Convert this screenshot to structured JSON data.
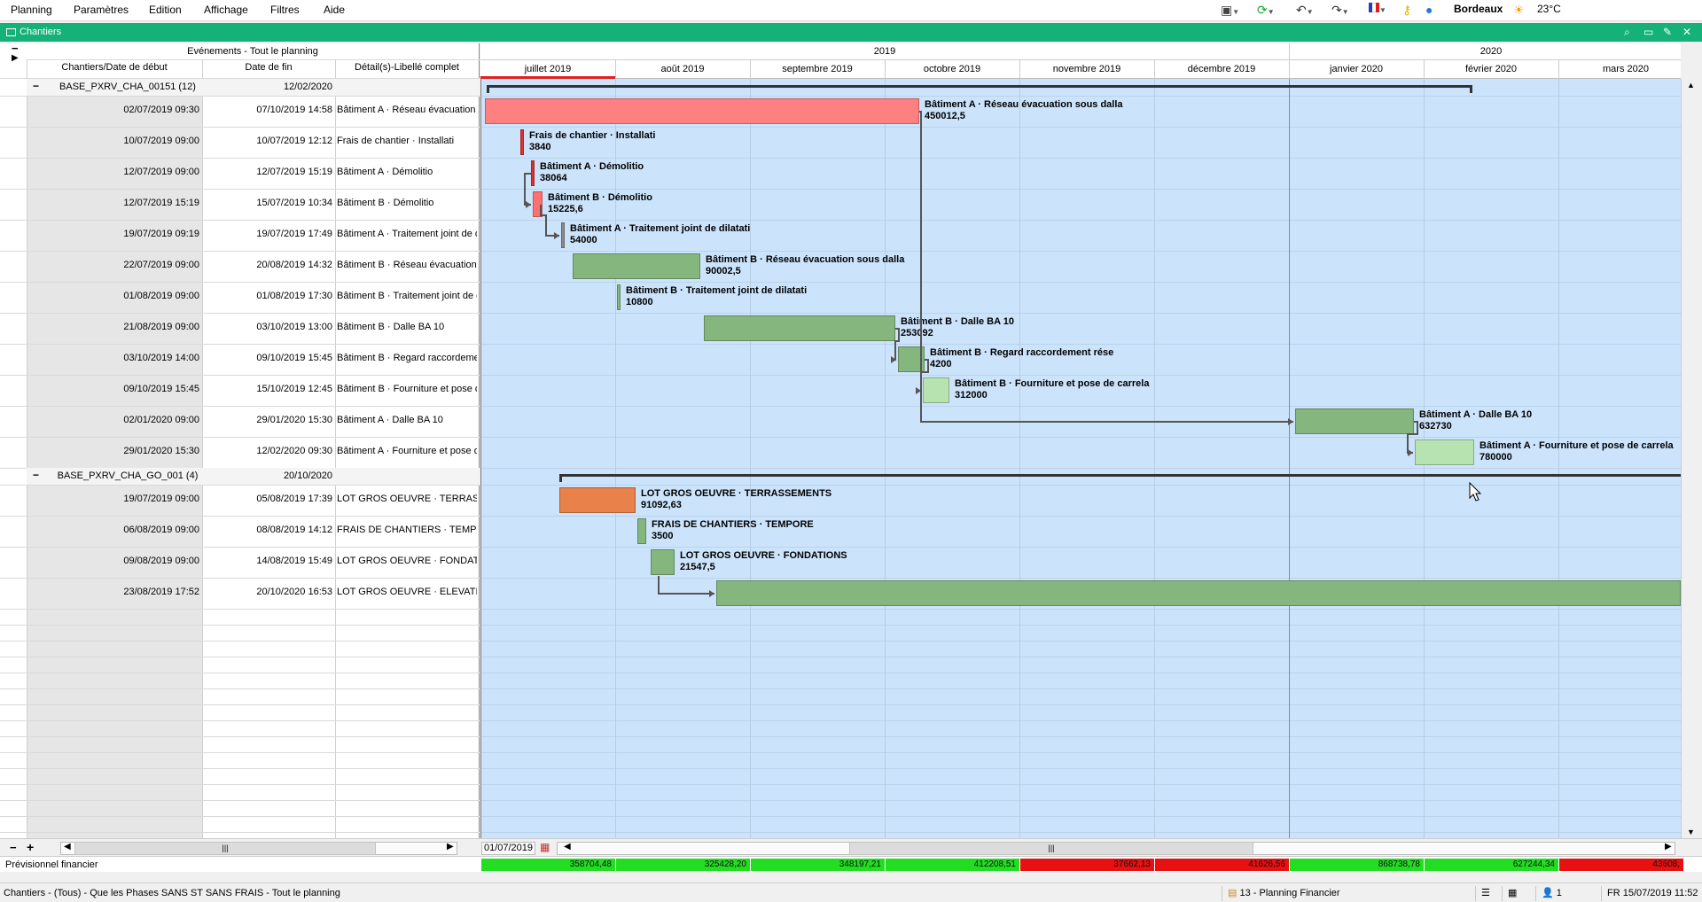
{
  "menu": [
    "Planning",
    "Paramètres",
    "Edition",
    "Affichage",
    "Filtres",
    "Aide"
  ],
  "tray": {
    "city": "Bordeaux",
    "temperature": "23°C"
  },
  "window_title": "Chantiers",
  "grid": {
    "events_header": "Evénements - Tout le planning",
    "col_start": "Chantiers/Date de début",
    "col_end": "Date de fin",
    "col_detail": "Détail(s)-Libellé complet"
  },
  "groups": [
    {
      "name": "BASE_PXRV_CHA_00151 (12)",
      "end": "12/02/2020",
      "rows": [
        {
          "start": "02/07/2019 09:30",
          "end": "07/10/2019 14:58",
          "detail": "Bâtiment A · Réseau évacuation sous dalla",
          "label": "Bâtiment A · Réseau évacuation sous dalla",
          "value": "450012,5"
        },
        {
          "start": "10/07/2019 09:00",
          "end": "10/07/2019 12:12",
          "detail": "Frais de chantier · Installati",
          "label": "Frais de chantier · Installati",
          "value": "3840"
        },
        {
          "start": "12/07/2019 09:00",
          "end": "12/07/2019 15:19",
          "detail": "Bâtiment A · Démolitio",
          "label": "Bâtiment A · Démolitio",
          "value": "38064"
        },
        {
          "start": "12/07/2019 15:19",
          "end": "15/07/2019 10:34",
          "detail": "Bâtiment B · Démolitio",
          "label": "Bâtiment B · Démolitio",
          "value": "15225,6"
        },
        {
          "start": "19/07/2019 09:19",
          "end": "19/07/2019 17:49",
          "detail": "Bâtiment A · Traitement joint de dilatati",
          "label": "Bâtiment A · Traitement joint de dilatati",
          "value": "54000"
        },
        {
          "start": "22/07/2019 09:00",
          "end": "20/08/2019 14:32",
          "detail": "Bâtiment B · Réseau évacuation sous dalla",
          "label": "Bâtiment B · Réseau évacuation sous dalla",
          "value": "90002,5"
        },
        {
          "start": "01/08/2019 09:00",
          "end": "01/08/2019 17:30",
          "detail": "Bâtiment B · Traitement joint de dilatati",
          "label": "Bâtiment B · Traitement joint de dilatati",
          "value": "10800"
        },
        {
          "start": "21/08/2019 09:00",
          "end": "03/10/2019 13:00",
          "detail": "Bâtiment B · Dalle BA 10",
          "label": "Bâtiment B · Dalle BA 10",
          "value": "253092"
        },
        {
          "start": "03/10/2019 14:00",
          "end": "09/10/2019 15:45",
          "detail": "Bâtiment B · Regard raccordement rése",
          "label": "Bâtiment B · Regard raccordement rése",
          "value": "4200"
        },
        {
          "start": "09/10/2019 15:45",
          "end": "15/10/2019 12:45",
          "detail": "Bâtiment B · Fourniture et pose de carrela",
          "label": "Bâtiment B · Fourniture et pose de carrela",
          "value": "312000"
        },
        {
          "start": "02/01/2020 09:00",
          "end": "29/01/2020 15:30",
          "detail": "Bâtiment A · Dalle BA 10",
          "label": "Bâtiment A · Dalle BA 10",
          "value": "632730"
        },
        {
          "start": "29/01/2020 15:30",
          "end": "12/02/2020 09:30",
          "detail": "Bâtiment A · Fourniture et pose de carrela",
          "label": "Bâtiment A · Fourniture et pose de carrela",
          "value": "780000"
        }
      ]
    },
    {
      "name": "BASE_PXRV_CHA_GO_001 (4)",
      "end": "20/10/2020",
      "rows": [
        {
          "start": "19/07/2019 09:00",
          "end": "05/08/2019 17:39",
          "detail": "LOT GROS OEUVRE · TERRASSEMENTS",
          "label": "LOT GROS OEUVRE · TERRASSEMENTS",
          "value": "91092,63"
        },
        {
          "start": "06/08/2019 09:00",
          "end": "08/08/2019 14:12",
          "detail": "FRAIS DE CHANTIERS · TEMPORE",
          "label": "FRAIS DE CHANTIERS · TEMPORE",
          "value": "3500"
        },
        {
          "start": "09/08/2019 09:00",
          "end": "14/08/2019 15:49",
          "detail": "LOT GROS OEUVRE · FONDATIONS",
          "label": "LOT GROS OEUVRE · FONDATIONS",
          "value": "21547,5"
        },
        {
          "start": "23/08/2019 17:52",
          "end": "20/10/2020 16:53",
          "detail": "LOT GROS OEUVRE · ELEVATIONS",
          "label": "",
          "value": ""
        }
      ]
    }
  ],
  "timeline": {
    "years": [
      "2019",
      "2020"
    ],
    "months": [
      "juillet 2019",
      "août 2019",
      "septembre 2019",
      "octobre 2019",
      "novembre 2019",
      "décembre 2019",
      "janvier 2020",
      "février 2020",
      "mars 2020"
    ]
  },
  "footer": {
    "date": "01/07/2019",
    "fin_label": "Prévisionnel financier",
    "fin_values": [
      {
        "v": "358704,48",
        "color": "#22dd22"
      },
      {
        "v": "325428,20",
        "color": "#22dd22"
      },
      {
        "v": "348197,21",
        "color": "#22dd22"
      },
      {
        "v": "412208,51",
        "color": "#22dd22"
      },
      {
        "v": "37662,13",
        "color": "#e81010"
      },
      {
        "v": "41626,56",
        "color": "#e81010"
      },
      {
        "v": "868738,78",
        "color": "#22dd22"
      },
      {
        "v": "627244,34",
        "color": "#22dd22"
      },
      {
        "v": "43608,",
        "color": "#e81010"
      }
    ]
  },
  "status": {
    "left": "Chantiers - (Tous) - Que les Phases SANS ST SANS FRAIS - Tout le planning",
    "view": "13 - Planning Financier",
    "users": "1",
    "datetime": "FR 15/07/2019 11:52"
  }
}
